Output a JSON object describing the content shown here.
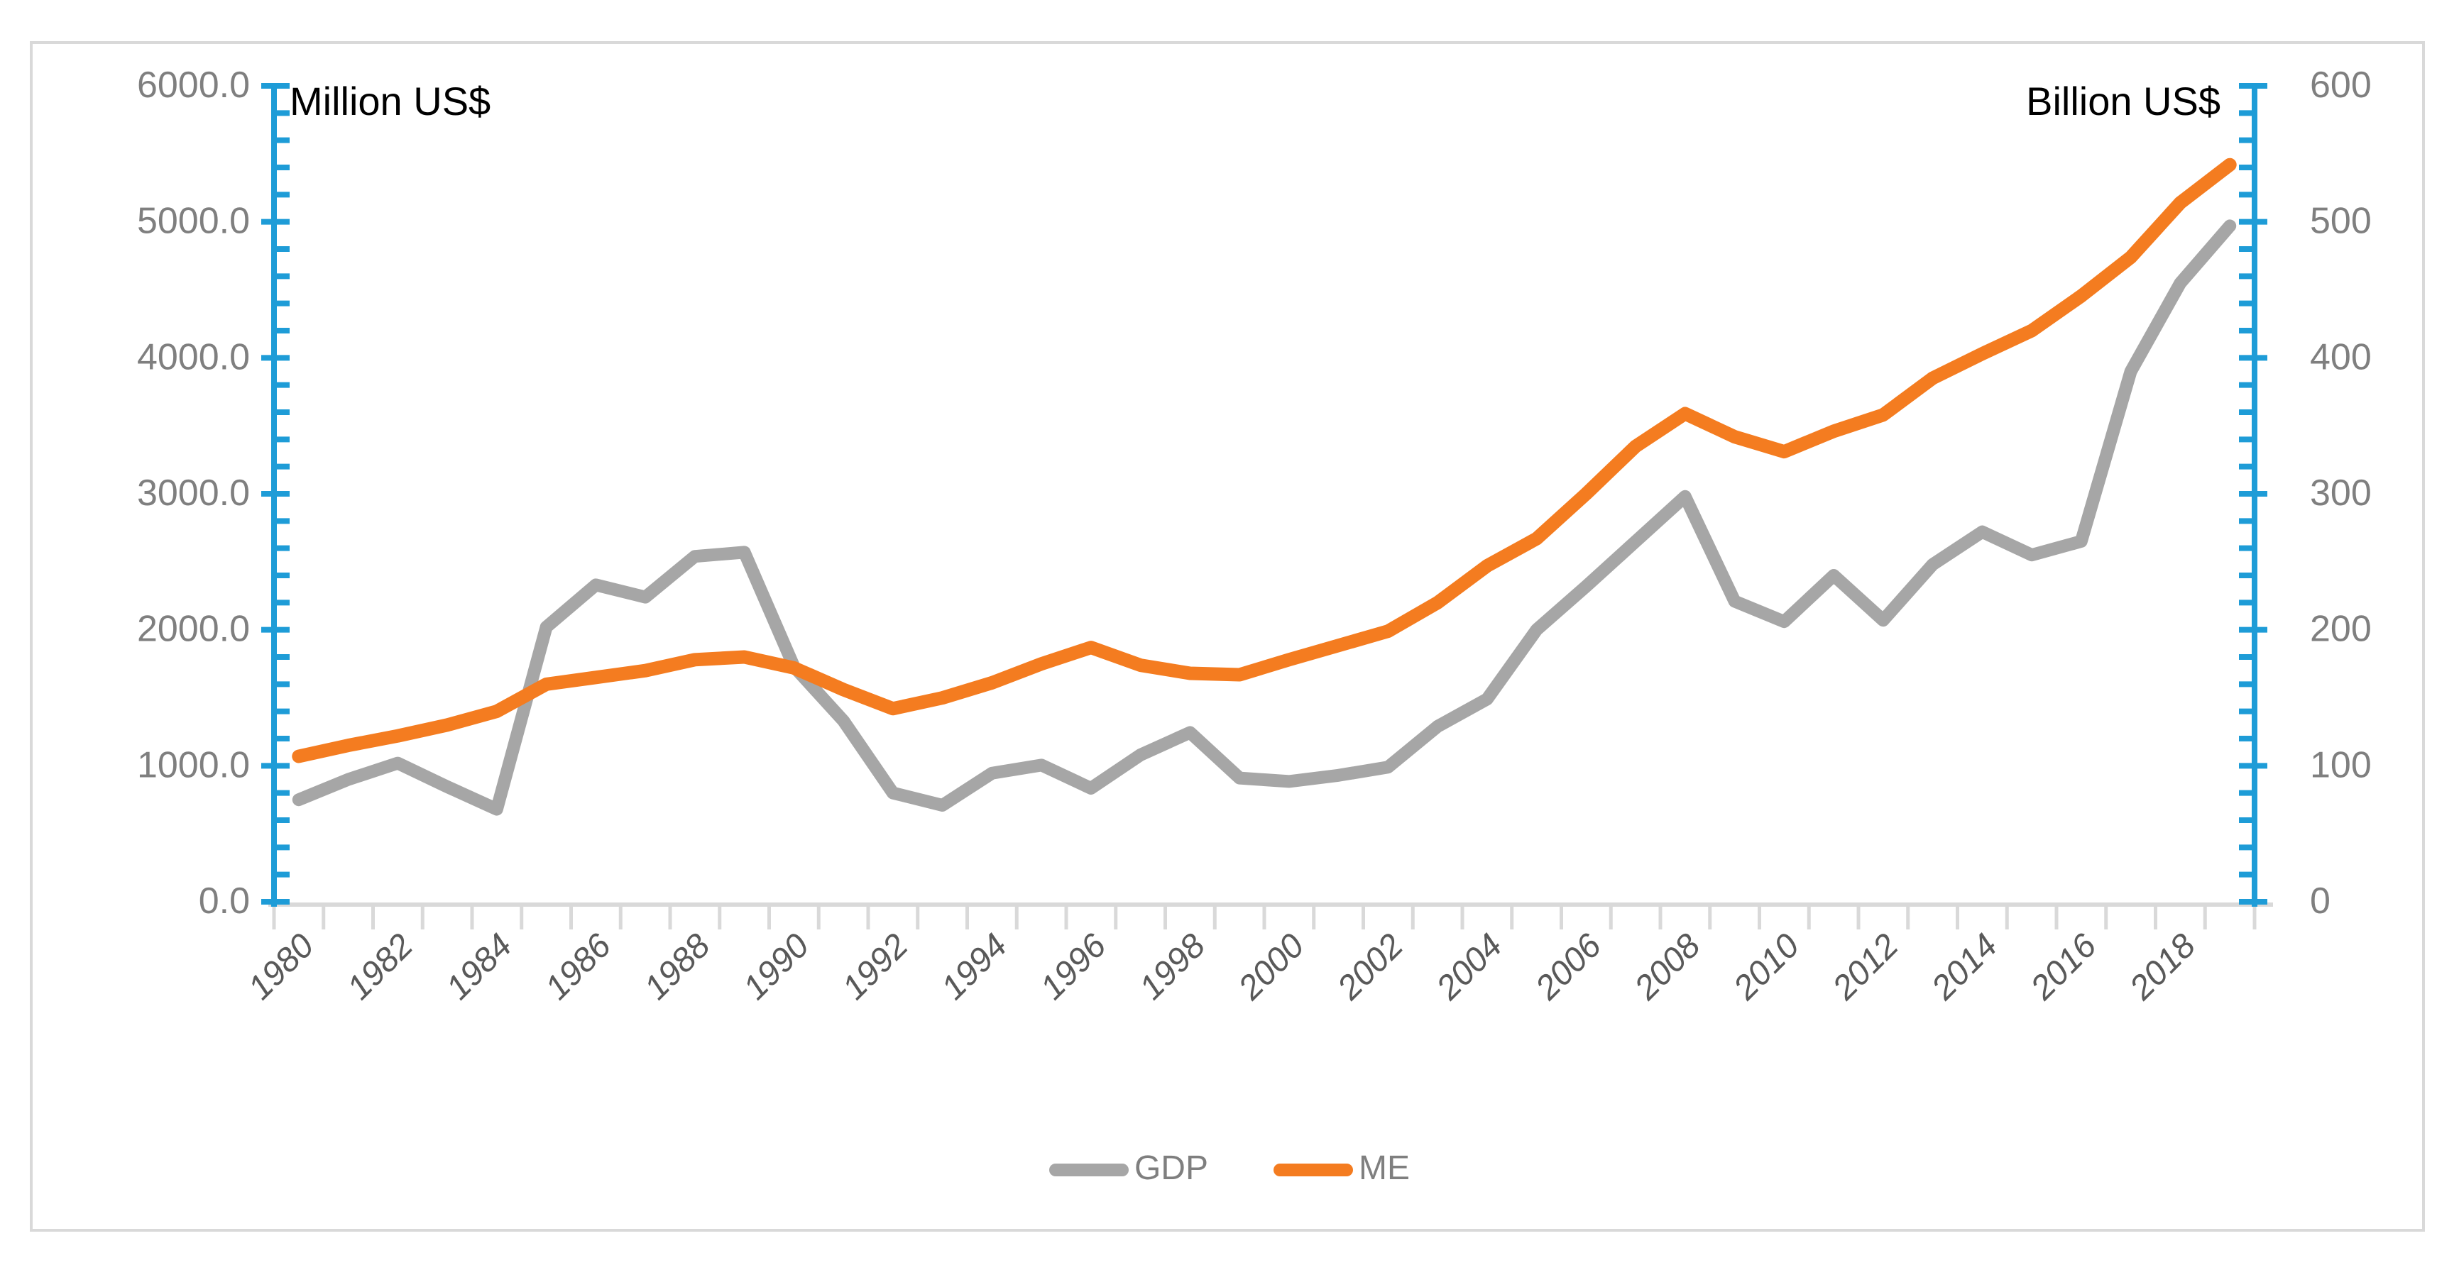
{
  "titles": {
    "left_axis_unit": "Million US$",
    "right_axis_unit": "Billion US$"
  },
  "legend": {
    "items": [
      {
        "label": "GDP",
        "color": "#A6A6A6"
      },
      {
        "label": "ME",
        "color": "#F47C20"
      }
    ]
  },
  "colors": {
    "axis_blue": "#1E9CD7",
    "grid_gray": "#D9D9D9",
    "tick_label_gray": "#7F7F7F",
    "year_label_gray": "#595959",
    "gdp_line": "#A6A6A6",
    "me_line": "#F47C20"
  },
  "chart_data": {
    "type": "line",
    "x": [
      1980,
      1981,
      1982,
      1983,
      1984,
      1985,
      1986,
      1987,
      1988,
      1989,
      1990,
      1991,
      1992,
      1993,
      1994,
      1995,
      1996,
      1997,
      1998,
      1999,
      2000,
      2001,
      2002,
      2003,
      2004,
      2005,
      2006,
      2007,
      2008,
      2009,
      2010,
      2011,
      2012,
      2013,
      2014,
      2015,
      2016,
      2017,
      2018,
      2019
    ],
    "x_tick_labels": [
      "1980",
      "1982",
      "1984",
      "1986",
      "1988",
      "1990",
      "1992",
      "1994",
      "1996",
      "1998",
      "2000",
      "2002",
      "2004",
      "2006",
      "2008",
      "2010",
      "2012",
      "2014",
      "2016",
      "2018"
    ],
    "series": [
      {
        "name": "GDP",
        "axis": "right",
        "unit": "Billion US$",
        "values": [
          75,
          90,
          102,
          84.5,
          68,
          202,
          233,
          224,
          254,
          257,
          173,
          133,
          80,
          71,
          94.5,
          100.5,
          83.5,
          108,
          124.5,
          91,
          88.5,
          93,
          99,
          129,
          149,
          200,
          232,
          265,
          298,
          221,
          206,
          240,
          207,
          248,
          272,
          255,
          265,
          390,
          455,
          497
        ]
      },
      {
        "name": "ME",
        "axis": "left",
        "unit": "Million US$",
        "values": [
          1070,
          1150,
          1220,
          1300,
          1400,
          1600,
          1650,
          1700,
          1780,
          1800,
          1720,
          1560,
          1420,
          1500,
          1610,
          1750,
          1870,
          1740,
          1680,
          1670,
          1780,
          1885,
          1990,
          2200,
          2470,
          2670,
          3000,
          3350,
          3590,
          3420,
          3310,
          3460,
          3580,
          3850,
          4030,
          4200,
          4455,
          4740,
          5140,
          5420
        ]
      }
    ],
    "left_axis": {
      "min": 0,
      "max": 6000,
      "major": 1000,
      "minor": 200,
      "tick_labels": [
        "0.0",
        "1000.0",
        "2000.0",
        "3000.0",
        "4000.0",
        "5000.0",
        "6000.0"
      ]
    },
    "right_axis": {
      "min": 0,
      "max": 600,
      "major": 100,
      "minor": 20,
      "tick_labels": [
        "0",
        "100",
        "200",
        "300",
        "400",
        "500",
        "600"
      ]
    },
    "legend_position": "bottom",
    "grid": "off"
  }
}
